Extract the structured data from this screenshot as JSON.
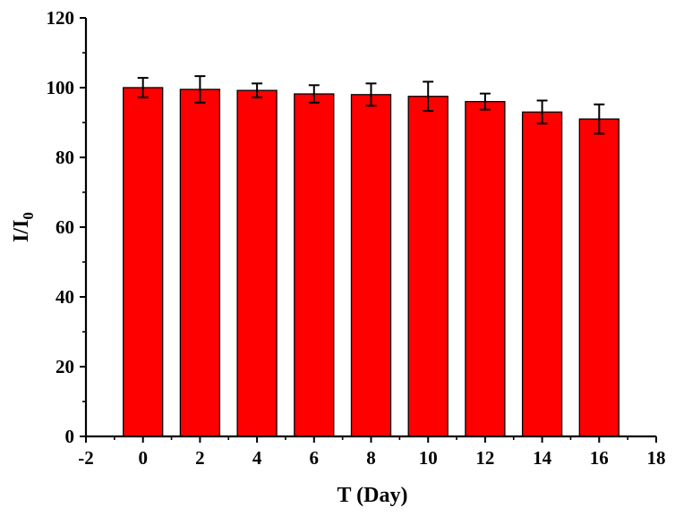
{
  "chart_data": {
    "type": "bar",
    "title": "",
    "xlabel": "T (Day)",
    "ylabel": {
      "main": "I/I",
      "subscript": "0"
    },
    "xlim": [
      -2,
      18
    ],
    "ylim": [
      0,
      120
    ],
    "x_ticks": [
      -2,
      0,
      2,
      4,
      6,
      8,
      10,
      12,
      14,
      16,
      18
    ],
    "y_ticks": [
      0,
      20,
      40,
      60,
      80,
      100,
      120
    ],
    "x": [
      0,
      2,
      4,
      6,
      8,
      10,
      12,
      14,
      16
    ],
    "values": [
      100,
      99.5,
      99.2,
      98.2,
      98,
      97.5,
      96,
      93,
      91
    ],
    "errors": [
      2.8,
      3.8,
      2.0,
      2.5,
      3.2,
      4.2,
      2.3,
      3.3,
      4.2
    ],
    "bar_color": "#ff0000",
    "grid": false,
    "legend": "none"
  }
}
